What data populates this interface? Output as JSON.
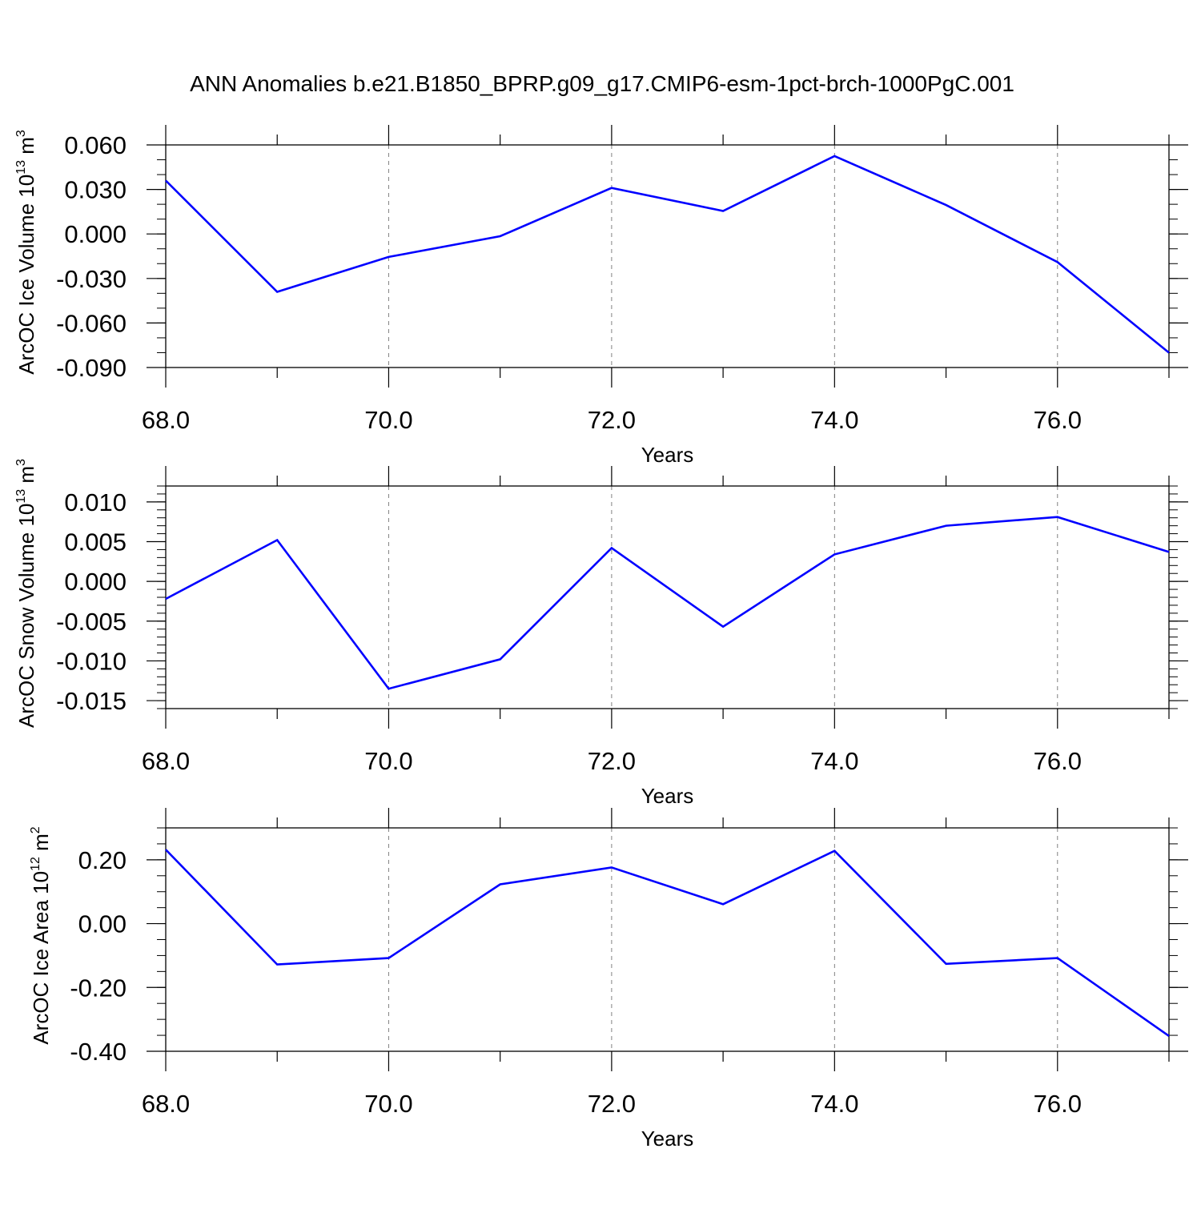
{
  "title": "ANN Anomalies b.e21.B1850_BPRP.g09_g17.CMIP6-esm-1pct-brch-1000PgC.001",
  "colors": {
    "series": "#0000ff",
    "axis": "#000000",
    "grid": "#808080"
  },
  "chart_data": [
    {
      "type": "line",
      "xlabel": "Years",
      "ylabel": {
        "text": "ArcOC Ice Volume 10",
        "exp": "13",
        "unit": " m",
        "unit_exp": "3"
      },
      "x": [
        68,
        69,
        70,
        71,
        72,
        73,
        74,
        75,
        76,
        77
      ],
      "y": [
        0.036,
        -0.039,
        -0.0155,
        -0.0015,
        0.031,
        0.0155,
        0.0525,
        0.0195,
        -0.019,
        -0.08
      ],
      "xlim": [
        68,
        77
      ],
      "ylim": [
        -0.09,
        0.06
      ],
      "xticks": [
        68,
        70,
        72,
        74,
        76
      ],
      "xtick_labels": [
        "68.0",
        "70.0",
        "72.0",
        "74.0",
        "76.0"
      ],
      "yticks": [
        -0.09,
        -0.06,
        -0.03,
        0.0,
        0.03,
        0.06
      ],
      "ytick_labels": [
        "-0.090",
        "-0.060",
        "-0.030",
        "0.000",
        "0.030",
        "0.060"
      ],
      "yminor_step": 0.01,
      "grid": "x-dashed"
    },
    {
      "type": "line",
      "xlabel": "Years",
      "ylabel": {
        "text": "ArcOC Snow Volume 10",
        "exp": "13",
        "unit": " m",
        "unit_exp": "3"
      },
      "x": [
        68,
        69,
        70,
        71,
        72,
        73,
        74,
        75,
        76,
        77
      ],
      "y": [
        -0.0022,
        0.0052,
        -0.0135,
        -0.0098,
        0.0042,
        -0.0057,
        0.0034,
        0.007,
        0.0081,
        0.0037
      ],
      "xlim": [
        68,
        77
      ],
      "ylim": [
        -0.016,
        0.012
      ],
      "xticks": [
        68,
        70,
        72,
        74,
        76
      ],
      "xtick_labels": [
        "68.0",
        "70.0",
        "72.0",
        "74.0",
        "76.0"
      ],
      "yticks": [
        -0.015,
        -0.01,
        -0.005,
        0.0,
        0.005,
        0.01
      ],
      "ytick_labels": [
        "-0.015",
        "-0.010",
        "-0.005",
        "0.000",
        "0.005",
        "0.010"
      ],
      "yminor_step": 0.001,
      "grid": "x-dashed"
    },
    {
      "type": "line",
      "xlabel": "Years",
      "ylabel": {
        "text": "ArcOC Ice Area 10",
        "exp": "12",
        "unit": " m",
        "unit_exp": "2"
      },
      "x": [
        68,
        69,
        70,
        71,
        72,
        73,
        74,
        75,
        76,
        77
      ],
      "y": [
        0.232,
        -0.128,
        -0.108,
        0.123,
        0.176,
        0.061,
        0.228,
        -0.126,
        -0.108,
        -0.352
      ],
      "xlim": [
        68,
        77
      ],
      "ylim": [
        -0.4,
        0.3
      ],
      "xticks": [
        68,
        70,
        72,
        74,
        76
      ],
      "xtick_labels": [
        "68.0",
        "70.0",
        "72.0",
        "74.0",
        "76.0"
      ],
      "yticks": [
        -0.4,
        -0.2,
        0.0,
        0.2
      ],
      "ytick_labels": [
        "-0.40",
        "-0.20",
        "0.00",
        "0.20"
      ],
      "yminor_step": 0.05,
      "grid": "x-dashed"
    }
  ]
}
